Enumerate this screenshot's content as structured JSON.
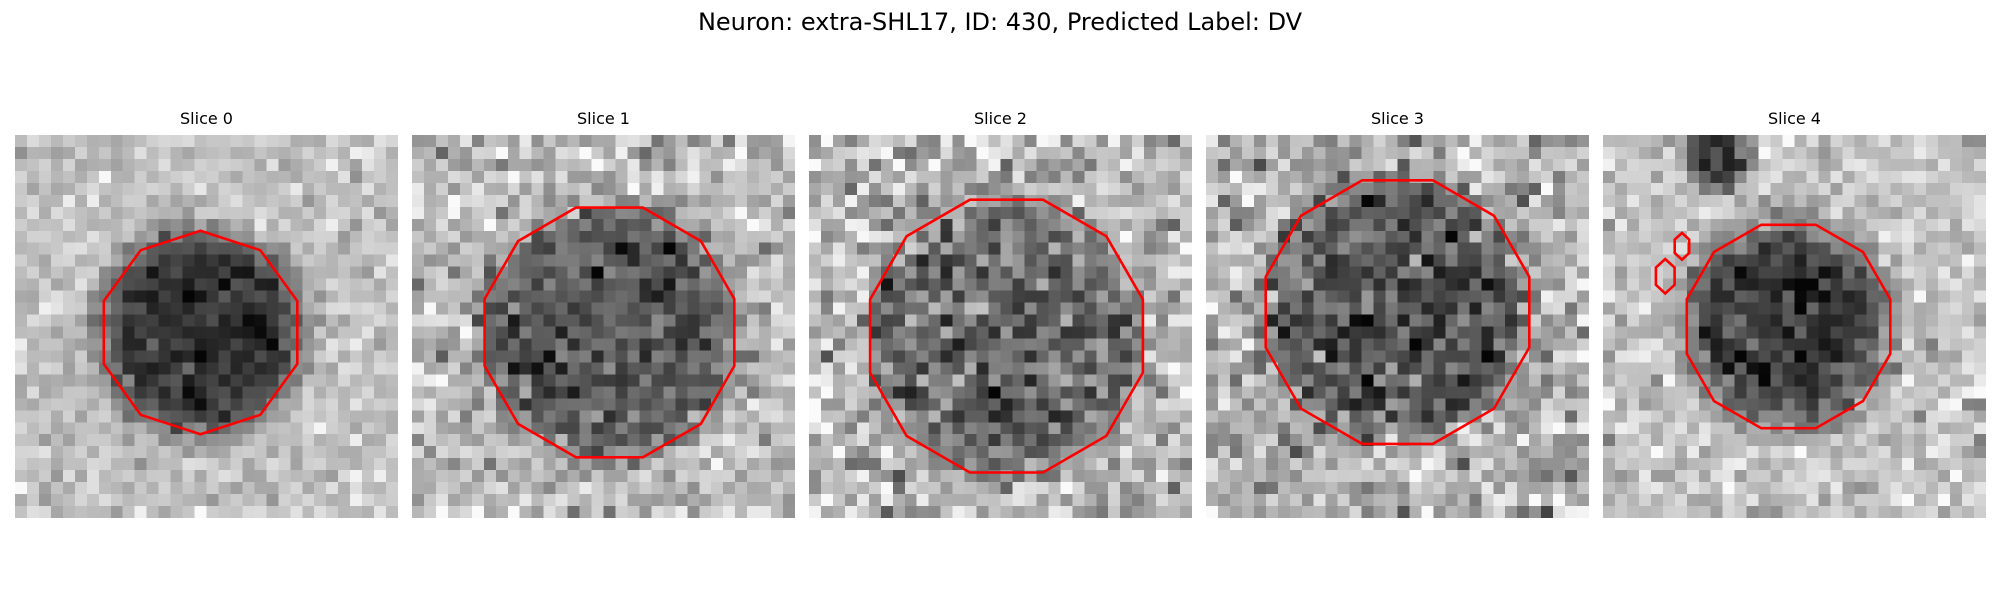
{
  "figure": {
    "title": "Neuron: extra-SHL17, ID: 430, Predicted Label: DV"
  },
  "colors": {
    "contour": "#ff0000",
    "background": "#ffffff"
  },
  "slices": [
    {
      "title": "Slice 0",
      "image": {
        "grid_size": 32,
        "blob": {
          "cx": 15.5,
          "cy": 16.5,
          "radius": 8.5,
          "strength": 0.55,
          "soft_edge": 4.0
        },
        "extra_dark_regions": [],
        "background_level": 0.76,
        "noise_level": 0.14,
        "seed": 11
      },
      "contours": [
        {
          "label": "segmentation",
          "cx": 15.5,
          "cy": 16.5,
          "radius": 8.5,
          "sides": 10
        }
      ]
    },
    {
      "title": "Slice 1",
      "image": {
        "grid_size": 32,
        "blob": {
          "cx": 16.5,
          "cy": 16.5,
          "radius": 10.5,
          "strength": 0.38,
          "soft_edge": 3.0
        },
        "extra_dark_regions": [],
        "background_level": 0.72,
        "noise_level": 0.22,
        "seed": 23
      },
      "contours": [
        {
          "label": "segmentation",
          "cx": 16.5,
          "cy": 16.5,
          "radius": 10.8,
          "sides": 12
        }
      ]
    },
    {
      "title": "Slice 2",
      "image": {
        "grid_size": 32,
        "blob": {
          "cx": 16.5,
          "cy": 16.8,
          "radius": 11.5,
          "strength": 0.28,
          "soft_edge": 3.0
        },
        "extra_dark_regions": [],
        "background_level": 0.72,
        "noise_level": 0.26,
        "seed": 37
      },
      "contours": [
        {
          "label": "segmentation",
          "cx": 16.5,
          "cy": 16.8,
          "radius": 11.8,
          "sides": 12
        }
      ]
    },
    {
      "title": "Slice 3",
      "image": {
        "grid_size": 32,
        "blob": {
          "cx": 16.0,
          "cy": 14.8,
          "radius": 11.0,
          "strength": 0.36,
          "soft_edge": 3.0
        },
        "extra_dark_regions": [],
        "background_level": 0.7,
        "noise_level": 0.28,
        "seed": 53
      },
      "contours": [
        {
          "label": "segmentation",
          "cx": 16.0,
          "cy": 14.8,
          "radius": 11.4,
          "sides": 12
        }
      ]
    },
    {
      "title": "Slice 4",
      "image": {
        "grid_size": 32,
        "blob": {
          "cx": 15.5,
          "cy": 16.0,
          "radius": 8.5,
          "strength": 0.42,
          "soft_edge": 4.0
        },
        "extra_dark_regions": [
          {
            "cx": 9.5,
            "cy": 2.0,
            "radius": 3.6,
            "strength": 0.55
          },
          {
            "cx": 15.0,
            "cy": 16.0,
            "radius": 10.5,
            "strength": 0.12
          }
        ],
        "background_level": 0.76,
        "noise_level": 0.18,
        "seed": 71
      },
      "contours": [
        {
          "label": "segmentation",
          "cx": 15.5,
          "cy": 16.0,
          "radius": 8.8,
          "sides": 12
        },
        {
          "label": "fragment-a",
          "cx": 6.6,
          "cy": 9.3,
          "radius": 0.7,
          "sides": 6
        },
        {
          "label": "fragment-b",
          "cx": 5.2,
          "cy": 11.8,
          "radius": 0.9,
          "sides": 6
        }
      ]
    }
  ]
}
